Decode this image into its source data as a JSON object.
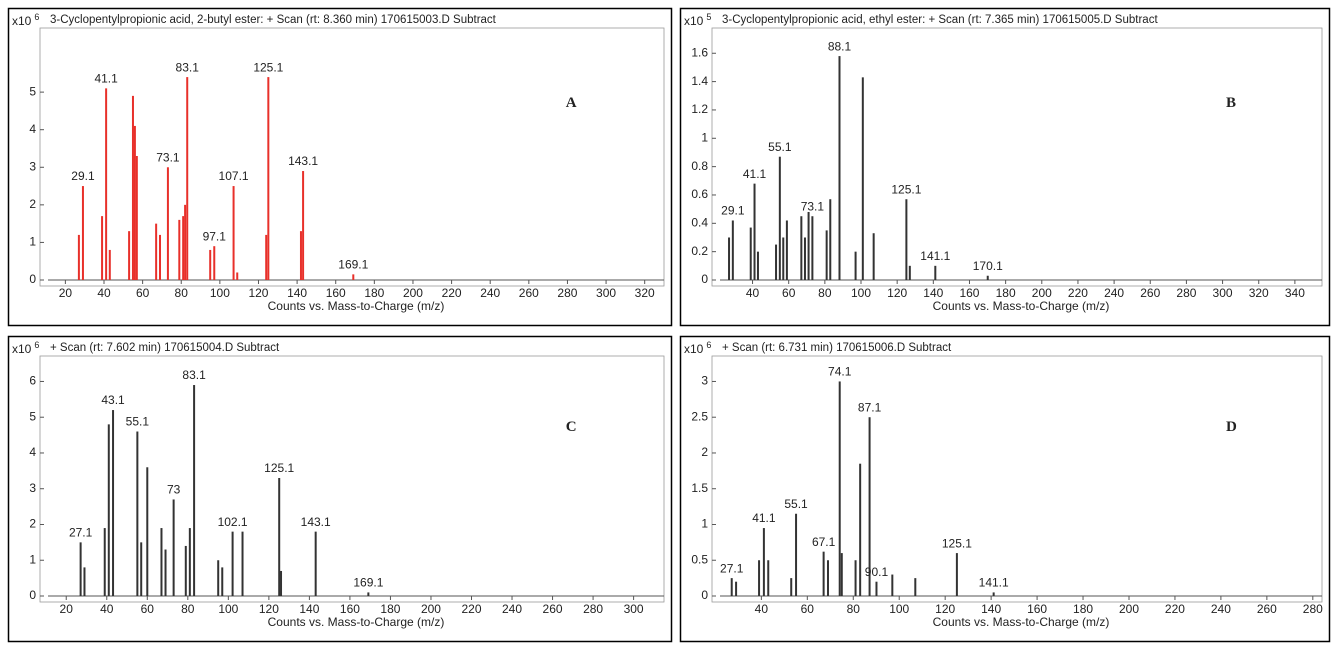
{
  "chart_data": [
    {
      "type": "bar",
      "title": "3-Cyclopentylpropionic acid, 2-butyl ester: + Scan (rt: 8.360 min) 170615003.D  Subtract",
      "panel_label": "A",
      "x_label": "Counts vs. Mass-to-Charge (m/z)",
      "y_multiplier": "x10",
      "y_exponent": 6,
      "color": "#e8302a",
      "x": [
        27,
        29.1,
        39,
        41.1,
        43,
        53,
        55,
        56,
        57,
        67,
        69,
        73.1,
        79,
        81,
        82,
        83.1,
        95,
        97.1,
        107.1,
        109,
        124,
        125.1,
        142,
        143.1,
        169.1
      ],
      "values": [
        1.2,
        2.5,
        1.7,
        5.1,
        0.8,
        1.3,
        4.9,
        4.1,
        3.3,
        1.5,
        1.2,
        3.0,
        1.6,
        1.7,
        2.0,
        5.4,
        0.8,
        0.9,
        2.5,
        0.2,
        1.2,
        5.4,
        1.3,
        2.9,
        0.15
      ],
      "peak_labels": [
        29.1,
        41.1,
        73.1,
        83.1,
        97.1,
        107.1,
        125.1,
        143.1,
        169.1
      ],
      "xlim": [
        11,
        330
      ],
      "xticks": [
        20,
        40,
        60,
        80,
        100,
        120,
        140,
        160,
        180,
        200,
        220,
        240,
        260,
        280,
        300,
        320
      ],
      "ylim": [
        0,
        6.6
      ],
      "yticks": [
        0,
        1,
        2,
        3,
        4,
        5
      ]
    },
    {
      "type": "bar",
      "title": "3-Cyclopentylpropionic acid, ethyl ester: + Scan (rt: 7.365 min) 170615005.D  Subtract",
      "panel_label": "B",
      "x_label": "Counts vs. Mass-to-Charge (m/z)",
      "y_multiplier": "x10",
      "y_exponent": 5,
      "color": "#333333",
      "x": [
        27,
        29.1,
        39,
        41.1,
        43,
        53,
        55.1,
        57,
        59,
        67,
        69,
        71,
        73.1,
        81,
        83,
        88.1,
        97,
        101,
        107,
        125.1,
        127,
        141.1,
        170.1
      ],
      "values": [
        0.3,
        0.42,
        0.37,
        0.68,
        0.2,
        0.25,
        0.87,
        0.3,
        0.42,
        0.45,
        0.3,
        0.48,
        0.45,
        0.35,
        0.57,
        1.58,
        0.2,
        1.43,
        0.33,
        0.57,
        0.1,
        0.1,
        0.03
      ],
      "peak_labels": [
        29.1,
        41.1,
        55.1,
        73.1,
        88.1,
        125.1,
        141.1,
        170.1
      ],
      "xlim": [
        22,
        355
      ],
      "xticks": [
        40,
        60,
        80,
        100,
        120,
        140,
        160,
        180,
        200,
        220,
        240,
        260,
        280,
        300,
        320,
        340
      ],
      "ylim": [
        0,
        1.75
      ],
      "yticks": [
        0,
        0.2,
        0.4,
        0.6,
        0.8,
        1,
        1.2,
        1.4,
        1.6
      ]
    },
    {
      "type": "bar",
      "title": "+ Scan (rt: 7.602 min) 170615004.D  Subtract",
      "panel_label": "C",
      "x_label": "Counts vs. Mass-to-Charge (m/z)",
      "y_multiplier": "x10",
      "y_exponent": 6,
      "color": "#333333",
      "x": [
        27.1,
        29,
        39,
        41,
        43.1,
        55.1,
        57,
        60,
        67,
        69,
        73.0,
        79,
        81,
        83.1,
        95,
        97,
        102.1,
        107,
        125.1,
        126,
        143.1,
        169.1
      ],
      "values": [
        1.5,
        0.8,
        1.9,
        4.8,
        5.2,
        4.6,
        1.5,
        3.6,
        1.9,
        1.3,
        2.7,
        1.4,
        1.9,
        5.9,
        1.0,
        0.8,
        1.8,
        1.8,
        3.3,
        0.7,
        1.8,
        0.1
      ],
      "peak_labels": [
        27.1,
        43.1,
        55.1,
        73.0,
        83.1,
        102.1,
        125.1,
        143.1,
        169.1
      ],
      "xlim": [
        11,
        315
      ],
      "xticks": [
        20,
        40,
        60,
        80,
        100,
        120,
        140,
        160,
        180,
        200,
        220,
        240,
        260,
        280,
        300
      ],
      "ylim": [
        0,
        6.6
      ],
      "yticks": [
        0,
        1,
        2,
        3,
        4,
        5,
        6
      ]
    },
    {
      "type": "bar",
      "title": "+ Scan (rt: 6.731 min) 170615006.D  Subtract",
      "panel_label": "D",
      "x_label": "Counts vs. Mass-to-Charge (m/z)",
      "y_multiplier": "x10",
      "y_exponent": 6,
      "color": "#333333",
      "x": [
        27.1,
        29,
        39,
        41.1,
        43,
        53,
        55.1,
        67.1,
        69,
        74.1,
        75,
        81,
        83,
        87.1,
        90.1,
        97,
        107,
        125.1,
        141.1
      ],
      "values": [
        0.25,
        0.2,
        0.5,
        0.95,
        0.5,
        0.25,
        1.15,
        0.62,
        0.5,
        3.0,
        0.6,
        0.5,
        1.85,
        2.5,
        0.2,
        0.3,
        0.25,
        0.6,
        0.05
      ],
      "peak_labels": [
        27.1,
        41.1,
        55.1,
        67.1,
        74.1,
        87.1,
        90.1,
        125.1,
        141.1
      ],
      "xlim": [
        22,
        284
      ],
      "xticks": [
        40,
        60,
        80,
        100,
        120,
        140,
        160,
        180,
        200,
        220,
        240,
        260,
        280
      ],
      "ylim": [
        0,
        3.3
      ],
      "yticks": [
        0,
        0.5,
        1,
        1.5,
        2,
        2.5,
        3
      ]
    }
  ]
}
